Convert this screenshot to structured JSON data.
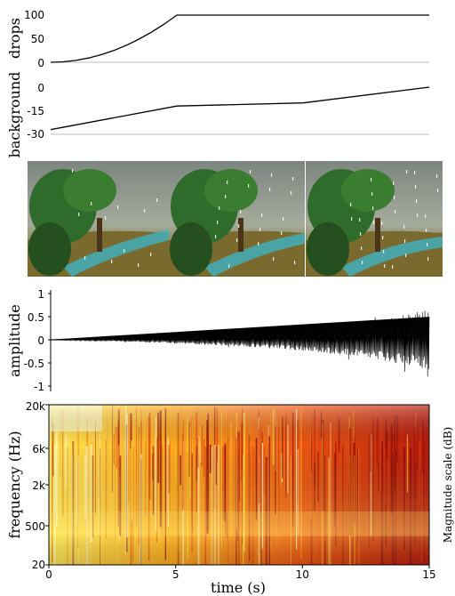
{
  "chart_data": [
    {
      "type": "line",
      "ylabel": "drops",
      "xlim": [
        0,
        15
      ],
      "ylim": [
        0,
        100
      ],
      "yticks": [
        "100",
        "50",
        "0"
      ],
      "x": [
        0,
        0.5,
        1,
        1.5,
        2,
        2.5,
        3,
        3.5,
        4,
        4.5,
        5,
        15
      ],
      "values": [
        0,
        1,
        4,
        9,
        16,
        25,
        36,
        49,
        64,
        81,
        100,
        100
      ]
    },
    {
      "type": "line",
      "ylabel": "background",
      "xlim": [
        0,
        15
      ],
      "ylim": [
        -30,
        0
      ],
      "yticks": [
        "0",
        "-15",
        "-30"
      ],
      "x": [
        0,
        5,
        10,
        15
      ],
      "values": [
        -27,
        -12,
        -10,
        0
      ]
    },
    {
      "type": "image",
      "frames": 3,
      "description_colors": [
        "#8a9a8a",
        "#2f6b2a",
        "#3fb3c4"
      ]
    },
    {
      "type": "line",
      "ylabel": "amplitude",
      "xlim": [
        0,
        15
      ],
      "ylim": [
        -1,
        1
      ],
      "yticks": [
        "1",
        "0.5",
        "0",
        "-0.5",
        "-1"
      ],
      "envelope_x": [
        0,
        1,
        2,
        3,
        4,
        5,
        6,
        7,
        8,
        9,
        10,
        11,
        12,
        13,
        14,
        15
      ],
      "envelope": [
        0.01,
        0.02,
        0.03,
        0.04,
        0.06,
        0.08,
        0.1,
        0.13,
        0.16,
        0.2,
        0.24,
        0.3,
        0.36,
        0.44,
        0.55,
        0.65
      ]
    },
    {
      "type": "heatmap",
      "ylabel": "frequency (Hz)",
      "xlabel": "time (s)",
      "xlim": [
        0,
        15
      ],
      "xticks": [
        "0",
        "5",
        "10",
        "15"
      ],
      "yticks": [
        "20k",
        "6k",
        "2k",
        "500",
        "20"
      ],
      "colorbar_label": "Magnitude scale (dB)",
      "colormap": [
        "#ffffc8",
        "#ffdc3c",
        "#ff9618",
        "#e03c10",
        "#8c0a0a"
      ]
    }
  ]
}
